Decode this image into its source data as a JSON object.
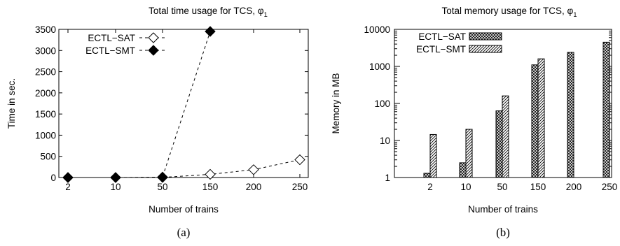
{
  "chart_data": [
    {
      "type": "line",
      "title": "Total time usage for TCS, φ",
      "title_subscript": "1",
      "xlabel": "Number of trains",
      "ylabel": "Time in sec.",
      "categories": [
        "2",
        "10",
        "50",
        "150",
        "200",
        "250"
      ],
      "ylim": [
        0,
        3500
      ],
      "yticks": [
        "0",
        "500",
        "1000",
        "1500",
        "2000",
        "2500",
        "3000",
        "3500"
      ],
      "legend_position": "top-left",
      "series": [
        {
          "name": "ECTL−SAT",
          "marker": "open-diamond",
          "values": [
            0,
            0,
            2,
            75,
            185,
            420
          ]
        },
        {
          "name": "ECTL−SMT",
          "marker": "filled-diamond",
          "values": [
            0,
            0,
            10,
            3450,
            null,
            null
          ]
        }
      ],
      "caption": "(a)"
    },
    {
      "type": "bar",
      "title": "Total memory usage for TCS, φ",
      "title_subscript": "1",
      "xlabel": "Number of trains",
      "ylabel": "Memory in MB",
      "categories": [
        "2",
        "10",
        "50",
        "150",
        "200",
        "250"
      ],
      "ylim": [
        1,
        10000
      ],
      "yscale": "log",
      "yticks": [
        "1",
        "10",
        "100",
        "1000",
        "10000"
      ],
      "legend_position": "top-left",
      "series": [
        {
          "name": "ECTL−SAT",
          "pattern": "crosshatch",
          "values": [
            1.3,
            2.5,
            63,
            1100,
            2400,
            4500
          ]
        },
        {
          "name": "ECTL−SMT",
          "pattern": "diagonal",
          "values": [
            14.5,
            20,
            160,
            1600,
            null,
            null
          ]
        }
      ],
      "caption": "(b)"
    }
  ]
}
